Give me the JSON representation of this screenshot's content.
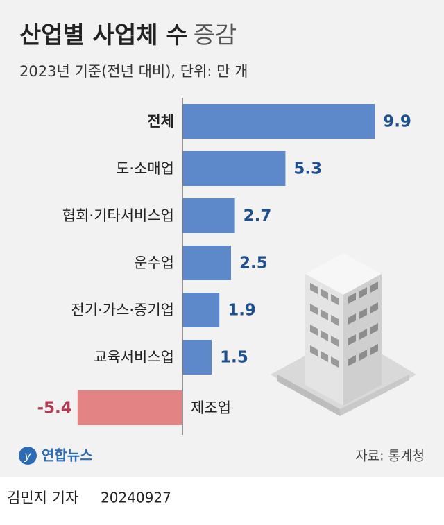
{
  "chart_data": {
    "type": "bar",
    "orientation": "horizontal",
    "title_parts": [
      "산업별 사업체 수",
      "증감"
    ],
    "subtitle": "2023년 기준(전년 대비), 단위: 만 개",
    "categories": [
      "전체",
      "도·소매업",
      "협회·기타서비스업",
      "운수업",
      "전기·가스·증기업",
      "교육서비스업",
      "제조업"
    ],
    "values": [
      9.9,
      5.3,
      2.7,
      2.5,
      1.9,
      1.5,
      -5.4
    ],
    "color": "#5d88c9",
    "negative_color": "#e38383",
    "label_color": "#1e4f8f",
    "negative_label_color": "#b23a55",
    "xlim": [
      -6,
      10
    ],
    "source": "자료: 통계청",
    "logo": "연합뉴스",
    "byline": "김민지 기자",
    "date": "20240927"
  }
}
